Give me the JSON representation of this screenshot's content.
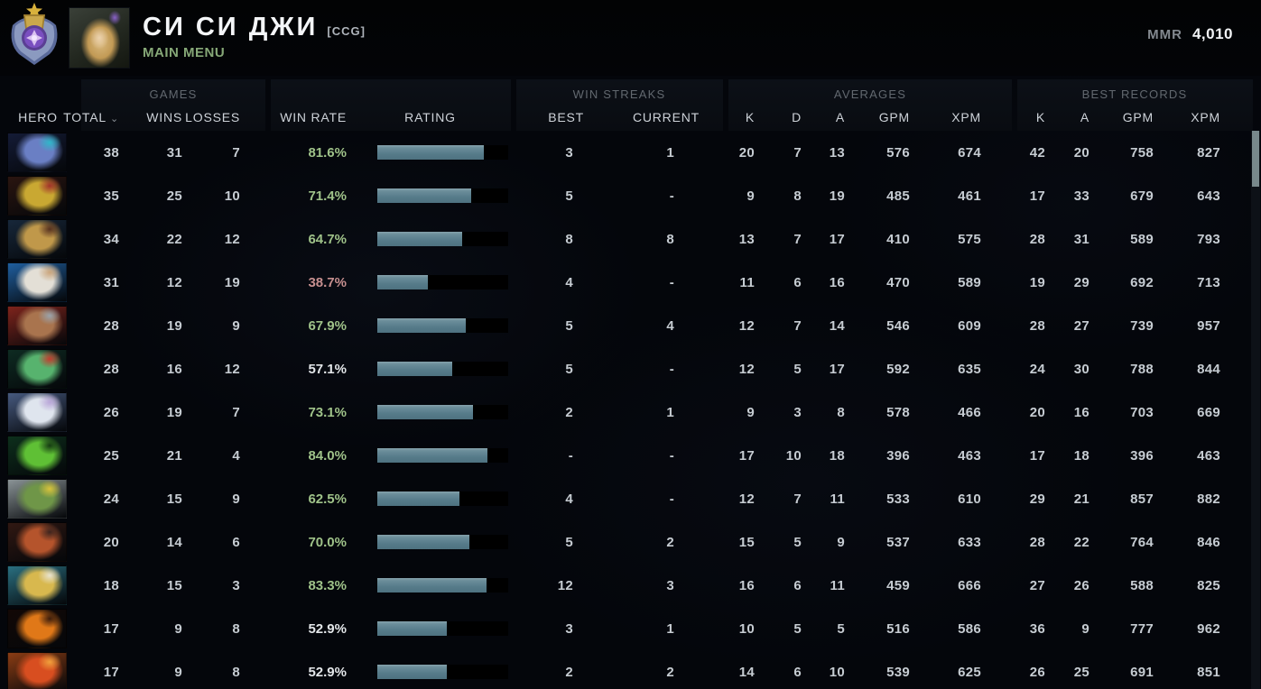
{
  "header": {
    "player_name": "СИ СИ ДЖИ",
    "clan_tag": "[CCG]",
    "subtitle": "MAIN MENU",
    "mmr_label": "MMR",
    "mmr_value": "4,010"
  },
  "table": {
    "hero_col": "HERO",
    "sort_indicator": "⌄",
    "groups": {
      "games": "GAMES",
      "win_streaks": "WIN STREAKS",
      "averages": "AVERAGES",
      "best_records": "BEST RECORDS"
    },
    "cols": {
      "total": "TOTAL",
      "wins": "WINS",
      "losses": "LOSSES",
      "win_rate": "WIN RATE",
      "rating": "RATING",
      "best": "BEST",
      "current": "CURRENT",
      "k": "K",
      "d": "D",
      "a": "A",
      "gpm": "GPM",
      "xpm": "XPM"
    }
  },
  "colors": {
    "winrate_high": "#9fc289",
    "winrate_mid": "#e3e6e9",
    "winrate_low": "#c68f8f",
    "bar_fill": "#567b8a",
    "bar_bg": "#000000",
    "accent_green": "#86a877",
    "text": "#c6ccd2"
  },
  "rows": [
    {
      "hero": "riki",
      "portrait": [
        "#141b36",
        "#6a7fc4",
        "#2fb7c9"
      ],
      "total": "38",
      "wins": "31",
      "losses": "7",
      "win_rate": "81.6%",
      "win_rate_value": 81.6,
      "tier": "high",
      "streak_best": "3",
      "streak_current": "1",
      "k": "20",
      "d": "7",
      "a": "13",
      "gpm": "576",
      "xpm": "674",
      "bk": "42",
      "ba": "20",
      "bgpm": "758",
      "bxpm": "827"
    },
    {
      "hero": "bounty-hunter",
      "portrait": [
        "#2a1510",
        "#c9a832",
        "#a2322a"
      ],
      "total": "35",
      "wins": "25",
      "losses": "10",
      "win_rate": "71.4%",
      "win_rate_value": 71.4,
      "tier": "high",
      "streak_best": "5",
      "streak_current": "-",
      "k": "9",
      "d": "8",
      "a": "19",
      "gpm": "485",
      "xpm": "461",
      "bk": "17",
      "ba": "33",
      "bgpm": "679",
      "bxpm": "643"
    },
    {
      "hero": "wraith-king",
      "portrait": [
        "#17273a",
        "#c0984a",
        "#55301f"
      ],
      "total": "34",
      "wins": "22",
      "losses": "12",
      "win_rate": "64.7%",
      "win_rate_value": 64.7,
      "tier": "high",
      "streak_best": "8",
      "streak_current": "8",
      "k": "13",
      "d": "7",
      "a": "17",
      "gpm": "410",
      "xpm": "575",
      "bk": "28",
      "ba": "31",
      "bgpm": "589",
      "bxpm": "793"
    },
    {
      "hero": "zeus",
      "portrait": [
        "#1f5e9e",
        "#e3dfd6",
        "#caa57c"
      ],
      "total": "31",
      "wins": "12",
      "losses": "19",
      "win_rate": "38.7%",
      "win_rate_value": 38.7,
      "tier": "low",
      "streak_best": "4",
      "streak_current": "-",
      "k": "11",
      "d": "6",
      "a": "16",
      "gpm": "470",
      "xpm": "589",
      "bk": "19",
      "ba": "29",
      "bgpm": "692",
      "bxpm": "713"
    },
    {
      "hero": "beastmaster",
      "portrait": [
        "#7e241c",
        "#a9744e",
        "#9aa3ab"
      ],
      "total": "28",
      "wins": "19",
      "losses": "9",
      "win_rate": "67.9%",
      "win_rate_value": 67.9,
      "tier": "high",
      "streak_best": "5",
      "streak_current": "4",
      "k": "12",
      "d": "7",
      "a": "14",
      "gpm": "546",
      "xpm": "609",
      "bk": "28",
      "ba": "27",
      "bgpm": "739",
      "bxpm": "957"
    },
    {
      "hero": "necrophos",
      "portrait": [
        "#0e2b22",
        "#57b36e",
        "#c23b2e"
      ],
      "total": "28",
      "wins": "16",
      "losses": "12",
      "win_rate": "57.1%",
      "win_rate_value": 57.1,
      "tier": "mid",
      "streak_best": "5",
      "streak_current": "-",
      "k": "12",
      "d": "5",
      "a": "17",
      "gpm": "592",
      "xpm": "635",
      "bk": "24",
      "ba": "30",
      "bgpm": "788",
      "bxpm": "844"
    },
    {
      "hero": "drow-ranger",
      "portrait": [
        "#46597e",
        "#dfe5ee",
        "#b9a6d8"
      ],
      "total": "26",
      "wins": "19",
      "losses": "7",
      "win_rate": "73.1%",
      "win_rate_value": 73.1,
      "tier": "high",
      "streak_best": "2",
      "streak_current": "1",
      "k": "9",
      "d": "3",
      "a": "8",
      "gpm": "578",
      "xpm": "466",
      "bk": "20",
      "ba": "16",
      "bgpm": "703",
      "bxpm": "669"
    },
    {
      "hero": "venomancer",
      "portrait": [
        "#0d2f1c",
        "#5fc035",
        "#153a12"
      ],
      "total": "25",
      "wins": "21",
      "losses": "4",
      "win_rate": "84.0%",
      "win_rate_value": 84.0,
      "tier": "high",
      "streak_best": "-",
      "streak_current": "-",
      "k": "17",
      "d": "10",
      "a": "18",
      "gpm": "396",
      "xpm": "463",
      "bk": "17",
      "ba": "18",
      "bgpm": "396",
      "bxpm": "463"
    },
    {
      "hero": "tidehunter",
      "portrait": [
        "#8a9396",
        "#6f9648",
        "#d8c23c"
      ],
      "total": "24",
      "wins": "15",
      "losses": "9",
      "win_rate": "62.5%",
      "win_rate_value": 62.5,
      "tier": "high",
      "streak_best": "4",
      "streak_current": "-",
      "k": "12",
      "d": "7",
      "a": "11",
      "gpm": "533",
      "xpm": "610",
      "bk": "29",
      "ba": "21",
      "bgpm": "857",
      "bxpm": "882"
    },
    {
      "hero": "ursa",
      "portrait": [
        "#301812",
        "#b5542c",
        "#3c241e"
      ],
      "total": "20",
      "wins": "14",
      "losses": "6",
      "win_rate": "70.0%",
      "win_rate_value": 70.0,
      "tier": "high",
      "streak_best": "5",
      "streak_current": "2",
      "k": "15",
      "d": "5",
      "a": "9",
      "gpm": "537",
      "xpm": "633",
      "bk": "28",
      "ba": "22",
      "bgpm": "764",
      "bxpm": "846"
    },
    {
      "hero": "skywrath-mage",
      "portrait": [
        "#2a6f80",
        "#d8b84e",
        "#e8e3cf"
      ],
      "total": "18",
      "wins": "15",
      "losses": "3",
      "win_rate": "83.3%",
      "win_rate_value": 83.3,
      "tier": "high",
      "streak_best": "12",
      "streak_current": "3",
      "k": "16",
      "d": "6",
      "a": "11",
      "gpm": "459",
      "xpm": "666",
      "bk": "27",
      "ba": "26",
      "bgpm": "588",
      "bxpm": "825"
    },
    {
      "hero": "clinkz",
      "portrait": [
        "#120806",
        "#e07818",
        "#3a1c0c"
      ],
      "total": "17",
      "wins": "9",
      "losses": "8",
      "win_rate": "52.9%",
      "win_rate_value": 52.9,
      "tier": "mid",
      "streak_best": "3",
      "streak_current": "1",
      "k": "10",
      "d": "5",
      "a": "5",
      "gpm": "516",
      "xpm": "586",
      "bk": "36",
      "ba": "9",
      "bgpm": "777",
      "bxpm": "962"
    },
    {
      "hero": "lina",
      "portrait": [
        "#8a3c14",
        "#d84e20",
        "#f0a03c"
      ],
      "total": "17",
      "wins": "9",
      "losses": "8",
      "win_rate": "52.9%",
      "win_rate_value": 52.9,
      "tier": "mid",
      "streak_best": "2",
      "streak_current": "2",
      "k": "14",
      "d": "6",
      "a": "10",
      "gpm": "539",
      "xpm": "625",
      "bk": "26",
      "ba": "25",
      "bgpm": "691",
      "bxpm": "851"
    }
  ]
}
